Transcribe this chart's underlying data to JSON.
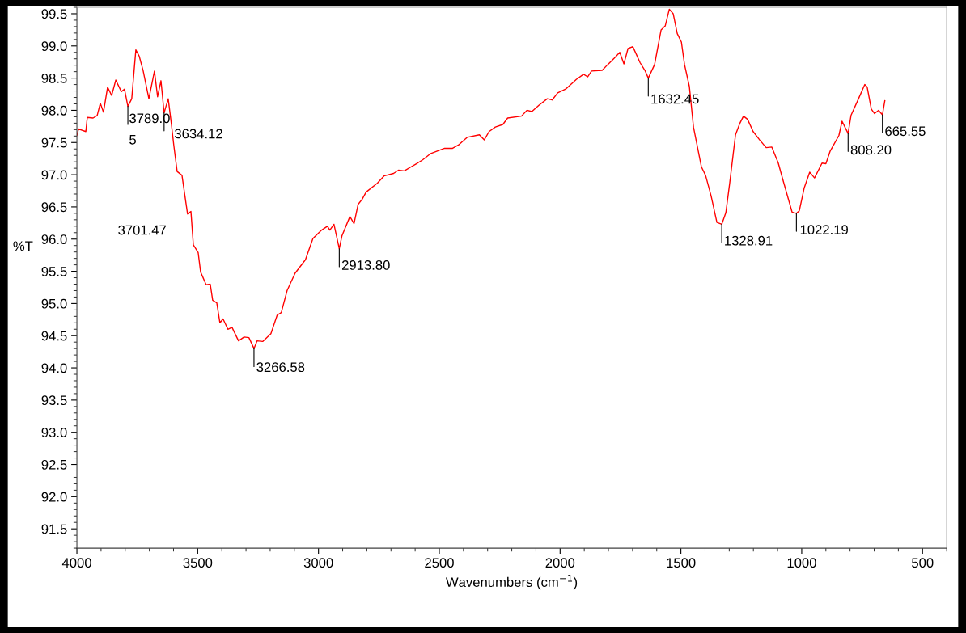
{
  "chart_data": {
    "type": "line",
    "xlabel": "Wavenumbers (cm$^{−1}$)",
    "ylabel": "%T",
    "xlim": [
      4000,
      400
    ],
    "ylim": [
      91.2,
      99.6
    ],
    "xticks": [
      4000,
      3500,
      3000,
      2500,
      2000,
      1500,
      1000,
      500
    ],
    "yticks": [
      {
        "value": 91.5,
        "label": "91.5"
      },
      {
        "value": 92,
        "label": "92.0"
      },
      {
        "value": 92.5,
        "label": "92.5"
      },
      {
        "value": 93,
        "label": "93.0"
      },
      {
        "value": 93.5,
        "label": "93.5"
      },
      {
        "value": 94,
        "label": "94.0"
      },
      {
        "value": 94.5,
        "label": "94.5"
      },
      {
        "value": 95,
        "label": "95.0"
      },
      {
        "value": 95.5,
        "label": "95.5"
      },
      {
        "value": 96,
        "label": "96.0"
      },
      {
        "value": 96.5,
        "label": "96.5"
      },
      {
        "value": 97,
        "label": "97.0"
      },
      {
        "value": 97.5,
        "label": "97.5"
      },
      {
        "value": 98,
        "label": "98.0"
      },
      {
        "value": 98.5,
        "label": "98.5"
      },
      {
        "value": 99,
        "label": "99.0"
      },
      {
        "value": 99.5,
        "label": "99.5"
      }
    ],
    "grid": false,
    "legend": false,
    "marker": "none",
    "line_style": "solid",
    "series": [
      {
        "color": "#ff0000",
        "x": [
          4000,
          3993,
          3963,
          3957,
          3933,
          3916,
          3903,
          3890,
          3873,
          3856,
          3839,
          3816,
          3803,
          3789,
          3773,
          3756,
          3742,
          3726,
          3702,
          3679,
          3666,
          3652,
          3639,
          3622,
          3609,
          3599,
          3585,
          3565,
          3542,
          3528,
          3518,
          3498,
          3488,
          3465,
          3448,
          3438,
          3421,
          3408,
          3395,
          3375,
          3358,
          3331,
          3308,
          3288,
          3267,
          3254,
          3231,
          3197,
          3171,
          3154,
          3130,
          3097,
          3054,
          3023,
          2987,
          2963,
          2953,
          2936,
          2914,
          2903,
          2870,
          2853,
          2836,
          2819,
          2803,
          2756,
          2729,
          2689,
          2669,
          2645,
          2595,
          2569,
          2535,
          2478,
          2445,
          2421,
          2385,
          2334,
          2314,
          2294,
          2268,
          2237,
          2217,
          2160,
          2137,
          2117,
          2087,
          2053,
          2033,
          2010,
          1977,
          1933,
          1903,
          1886,
          1870,
          1826,
          1803,
          1776,
          1753,
          1736,
          1719,
          1699,
          1669,
          1649,
          1635,
          1609,
          1582,
          1565,
          1548,
          1532,
          1515,
          1498,
          1485,
          1465,
          1448,
          1415,
          1398,
          1375,
          1351,
          1331,
          1314,
          1298,
          1274,
          1257,
          1241,
          1224,
          1201,
          1174,
          1147,
          1124,
          1097,
          1074,
          1040,
          1022,
          1010,
          990,
          967,
          947,
          916,
          900,
          883,
          846,
          833,
          808,
          796,
          766,
          739,
          729,
          712,
          699,
          682,
          666,
          656
        ],
        "values": [
          97.61,
          97.71,
          97.67,
          97.89,
          97.88,
          97.92,
          98.11,
          97.97,
          98.36,
          98.23,
          98.47,
          98.29,
          98.33,
          98.06,
          98.18,
          98.94,
          98.84,
          98.62,
          98.18,
          98.61,
          98.21,
          98.46,
          97.96,
          98.18,
          97.79,
          97.46,
          97.05,
          96.99,
          96.39,
          96.43,
          95.91,
          95.79,
          95.49,
          95.29,
          95.3,
          95.05,
          95.01,
          94.7,
          94.76,
          94.6,
          94.63,
          94.42,
          94.48,
          94.47,
          94.3,
          94.42,
          94.41,
          94.53,
          94.82,
          94.86,
          95.2,
          95.47,
          95.68,
          96.01,
          96.14,
          96.2,
          96.14,
          96.23,
          95.85,
          96.05,
          96.35,
          96.24,
          96.54,
          96.62,
          96.73,
          96.87,
          96.98,
          97.02,
          97.07,
          97.06,
          97.17,
          97.23,
          97.33,
          97.41,
          97.41,
          97.46,
          97.58,
          97.62,
          97.54,
          97.67,
          97.74,
          97.78,
          97.88,
          97.91,
          98.0,
          97.98,
          98.08,
          98.18,
          98.16,
          98.27,
          98.33,
          98.48,
          98.56,
          98.52,
          98.61,
          98.62,
          98.71,
          98.81,
          98.9,
          98.72,
          98.96,
          98.99,
          98.74,
          98.62,
          98.5,
          98.71,
          99.25,
          99.31,
          99.57,
          99.5,
          99.19,
          99.06,
          98.71,
          98.37,
          97.74,
          97.12,
          96.99,
          96.67,
          96.26,
          96.23,
          96.41,
          96.87,
          97.62,
          97.79,
          97.91,
          97.86,
          97.67,
          97.54,
          97.42,
          97.43,
          97.18,
          96.87,
          96.42,
          96.4,
          96.44,
          96.79,
          97.04,
          96.95,
          97.18,
          97.17,
          97.36,
          97.61,
          97.83,
          97.64,
          97.92,
          98.17,
          98.4,
          98.36,
          98.02,
          97.95,
          98.0,
          97.93,
          98.15
        ]
      }
    ],
    "annotations": [
      {
        "text": "3789.0\n5",
        "x": 3789,
        "y": 98.06
      },
      {
        "text": "3634.12",
        "x": 3639,
        "y": 97.96
      },
      "3701.47",
      {
        "text": "3266.58",
        "x": 3267,
        "y": 94.3
      },
      {
        "text": "2913.80",
        "x": 2914,
        "y": 95.85
      },
      {
        "text": "1632.45",
        "x": 1635,
        "y": 98.5
      },
      {
        "text": "1328.91",
        "x": 1331,
        "y": 96.23
      },
      {
        "text": "1022.19",
        "x": 1022,
        "y": 96.4
      },
      {
        "text": "808.20",
        "x": 808,
        "y": 97.64
      },
      {
        "text": "665.55",
        "x": 666,
        "y": 97.93
      }
    ]
  }
}
